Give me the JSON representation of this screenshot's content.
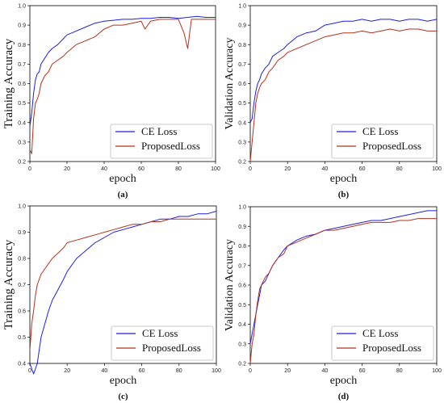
{
  "colors": {
    "ce": "#1f1fe0",
    "proposed": "#b3321e"
  },
  "chart_data": [
    {
      "type": "line",
      "panel": "(a)",
      "xlabel": "epoch",
      "ylabel": "Training Accuracy",
      "xlim": [
        0,
        100
      ],
      "ylim": [
        0.2,
        1.0
      ],
      "xticks": [
        0,
        20,
        40,
        60,
        80,
        100
      ],
      "yticks": [
        0.2,
        0.3,
        0.4,
        0.5,
        0.6,
        0.7,
        0.8,
        0.9,
        1.0
      ],
      "legend_position": "bottom-right",
      "series": [
        {
          "name": "CE Loss",
          "color": "#1f1fe0",
          "x": [
            0,
            1,
            2,
            3,
            4,
            5,
            6,
            8,
            10,
            12,
            15,
            18,
            20,
            25,
            30,
            35,
            40,
            45,
            50,
            55,
            60,
            65,
            70,
            75,
            80,
            85,
            90,
            95,
            100
          ],
          "y": [
            0.38,
            0.45,
            0.55,
            0.62,
            0.65,
            0.66,
            0.7,
            0.73,
            0.76,
            0.78,
            0.8,
            0.83,
            0.85,
            0.87,
            0.89,
            0.91,
            0.92,
            0.925,
            0.93,
            0.93,
            0.935,
            0.935,
            0.94,
            0.94,
            0.935,
            0.94,
            0.945,
            0.94,
            0.94
          ]
        },
        {
          "name": "ProposedLoss",
          "color": "#b3321e",
          "x": [
            0,
            1,
            2,
            3,
            4,
            5,
            6,
            8,
            10,
            12,
            15,
            18,
            20,
            25,
            30,
            35,
            40,
            45,
            50,
            55,
            60,
            62,
            65,
            70,
            75,
            80,
            83,
            85,
            87,
            90,
            95,
            100
          ],
          "y": [
            0.26,
            0.24,
            0.42,
            0.5,
            0.52,
            0.55,
            0.6,
            0.64,
            0.66,
            0.7,
            0.72,
            0.74,
            0.76,
            0.8,
            0.82,
            0.84,
            0.88,
            0.9,
            0.9,
            0.91,
            0.92,
            0.88,
            0.92,
            0.93,
            0.93,
            0.93,
            0.86,
            0.78,
            0.93,
            0.93,
            0.93,
            0.93
          ]
        }
      ]
    },
    {
      "type": "line",
      "panel": "(b)",
      "xlabel": "epoch",
      "ylabel": "Validation Accuracy",
      "xlim": [
        0,
        100
      ],
      "ylim": [
        0.2,
        1.0
      ],
      "xticks": [
        0,
        20,
        40,
        60,
        80,
        100
      ],
      "yticks": [
        0.2,
        0.3,
        0.4,
        0.5,
        0.6,
        0.7,
        0.8,
        0.9,
        1.0
      ],
      "legend_position": "bottom-right",
      "series": [
        {
          "name": "CE Loss",
          "color": "#1f1fe0",
          "x": [
            0,
            1,
            2,
            3,
            4,
            5,
            6,
            8,
            10,
            12,
            15,
            18,
            20,
            25,
            30,
            35,
            40,
            45,
            50,
            55,
            60,
            65,
            70,
            75,
            80,
            85,
            90,
            95,
            100
          ],
          "y": [
            0.4,
            0.42,
            0.5,
            0.56,
            0.6,
            0.62,
            0.65,
            0.68,
            0.7,
            0.74,
            0.76,
            0.78,
            0.8,
            0.84,
            0.86,
            0.87,
            0.9,
            0.91,
            0.92,
            0.92,
            0.93,
            0.92,
            0.93,
            0.93,
            0.92,
            0.93,
            0.93,
            0.92,
            0.93
          ]
        },
        {
          "name": "ProposedLoss",
          "color": "#b3321e",
          "x": [
            0,
            1,
            2,
            3,
            4,
            5,
            6,
            8,
            10,
            12,
            15,
            18,
            20,
            25,
            30,
            35,
            40,
            45,
            50,
            55,
            60,
            65,
            70,
            75,
            80,
            85,
            90,
            95,
            100
          ],
          "y": [
            0.2,
            0.3,
            0.4,
            0.5,
            0.55,
            0.58,
            0.6,
            0.62,
            0.66,
            0.68,
            0.72,
            0.74,
            0.76,
            0.78,
            0.8,
            0.82,
            0.84,
            0.85,
            0.86,
            0.86,
            0.87,
            0.86,
            0.87,
            0.88,
            0.87,
            0.88,
            0.88,
            0.87,
            0.87
          ]
        }
      ]
    },
    {
      "type": "line",
      "panel": "(c)",
      "xlabel": "epoch",
      "ylabel": "Training Accuracy",
      "xlim": [
        0,
        100
      ],
      "ylim": [
        0.4,
        1.0
      ],
      "xticks": [
        0,
        20,
        40,
        60,
        80,
        100
      ],
      "yticks": [
        0.4,
        0.5,
        0.6,
        0.7,
        0.8,
        0.9,
        1.0
      ],
      "legend_position": "bottom-right",
      "series": [
        {
          "name": "CE Loss",
          "color": "#1f1fe0",
          "x": [
            0,
            1,
            2,
            3,
            4,
            5,
            6,
            8,
            10,
            12,
            15,
            18,
            20,
            25,
            30,
            35,
            40,
            45,
            50,
            55,
            60,
            65,
            70,
            75,
            80,
            85,
            90,
            95,
            100
          ],
          "y": [
            0.4,
            0.38,
            0.36,
            0.38,
            0.4,
            0.45,
            0.5,
            0.55,
            0.6,
            0.64,
            0.68,
            0.72,
            0.75,
            0.8,
            0.83,
            0.86,
            0.88,
            0.9,
            0.91,
            0.92,
            0.93,
            0.94,
            0.95,
            0.95,
            0.96,
            0.96,
            0.97,
            0.97,
            0.98
          ]
        },
        {
          "name": "ProposedLoss",
          "color": "#b3321e",
          "x": [
            0,
            1,
            2,
            3,
            4,
            5,
            6,
            8,
            10,
            12,
            15,
            18,
            20,
            25,
            30,
            35,
            40,
            45,
            50,
            55,
            60,
            65,
            70,
            75,
            80,
            85,
            90,
            95,
            100
          ],
          "y": [
            0.45,
            0.55,
            0.6,
            0.66,
            0.7,
            0.72,
            0.74,
            0.76,
            0.78,
            0.8,
            0.82,
            0.84,
            0.86,
            0.87,
            0.88,
            0.89,
            0.9,
            0.91,
            0.92,
            0.93,
            0.93,
            0.94,
            0.94,
            0.95,
            0.95,
            0.95,
            0.95,
            0.95,
            0.95
          ]
        }
      ]
    },
    {
      "type": "line",
      "panel": "(d)",
      "xlabel": "epoch",
      "ylabel": "Validation Accuracy",
      "xlim": [
        0,
        100
      ],
      "ylim": [
        0.2,
        1.0
      ],
      "xticks": [
        0,
        20,
        40,
        60,
        80,
        100
      ],
      "yticks": [
        0.2,
        0.3,
        0.4,
        0.5,
        0.6,
        0.7,
        0.8,
        0.9,
        1.0
      ],
      "legend_position": "bottom-right",
      "series": [
        {
          "name": "CE Loss",
          "color": "#1f1fe0",
          "x": [
            0,
            1,
            2,
            3,
            4,
            5,
            6,
            8,
            10,
            12,
            15,
            18,
            20,
            25,
            30,
            35,
            40,
            45,
            50,
            55,
            60,
            65,
            70,
            75,
            80,
            85,
            90,
            95,
            100
          ],
          "y": [
            0.3,
            0.35,
            0.4,
            0.45,
            0.5,
            0.55,
            0.6,
            0.62,
            0.66,
            0.7,
            0.74,
            0.78,
            0.8,
            0.83,
            0.85,
            0.86,
            0.88,
            0.89,
            0.9,
            0.91,
            0.92,
            0.93,
            0.93,
            0.94,
            0.95,
            0.96,
            0.97,
            0.98,
            0.98
          ]
        },
        {
          "name": "ProposedLoss",
          "color": "#b3321e",
          "x": [
            0,
            1,
            2,
            3,
            4,
            5,
            6,
            8,
            10,
            12,
            15,
            18,
            20,
            25,
            30,
            35,
            40,
            45,
            50,
            55,
            60,
            65,
            70,
            75,
            80,
            85,
            90,
            95,
            100
          ],
          "y": [
            0.2,
            0.3,
            0.35,
            0.45,
            0.52,
            0.58,
            0.6,
            0.64,
            0.66,
            0.7,
            0.74,
            0.76,
            0.8,
            0.82,
            0.84,
            0.86,
            0.88,
            0.88,
            0.89,
            0.9,
            0.91,
            0.92,
            0.92,
            0.92,
            0.93,
            0.93,
            0.94,
            0.94,
            0.94
          ]
        }
      ]
    }
  ]
}
